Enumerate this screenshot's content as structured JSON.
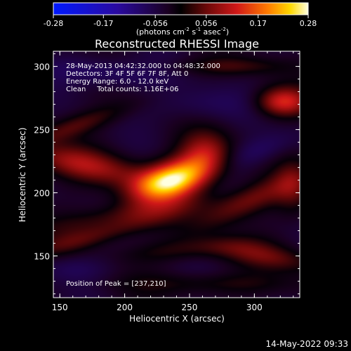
{
  "chart_data": {
    "type": "heatmap",
    "title": "Reconstructed RHESSI Image",
    "xlabel": "Heliocentric X (arcsec)",
    "ylabel": "Heliocentric Y (arcsec)",
    "xlim": [
      145,
      335
    ],
    "ylim": [
      117,
      312
    ],
    "xticks": [
      150,
      200,
      250,
      300
    ],
    "yticks": [
      150,
      200,
      250,
      300
    ],
    "colorbar": {
      "min": -0.28,
      "max": 0.28,
      "ticks": [
        "-0.28",
        "-0.17",
        "-0.056",
        "0.056",
        "0.17",
        "0.28"
      ],
      "units_parts": {
        "a": "(photons cm",
        "b": "-2",
        "c": " s",
        "d": "-1",
        "e": " asec",
        "f": "-2",
        "g": ")"
      }
    },
    "info_lines": [
      "28-May-2013 04:42:32.000 to 04:48:32.000",
      "Detectors: 3F 4F 5F 6F 7F 8F, Att 0",
      "Energy Range: 6.0 - 12.0 keV",
      "Clean     Total counts: 1.16E+06"
    ],
    "peak_label": "Position of Peak = [237,210]",
    "peak": {
      "x": 237,
      "y": 210,
      "value": 0.28
    },
    "field_components": [
      {
        "x": 237,
        "y": 210,
        "sx": 22,
        "sy": 10,
        "rot": 18,
        "amp": 0.3
      },
      {
        "x": 170,
        "y": 222,
        "sx": 34,
        "sy": 9,
        "rot": -12,
        "amp": 0.12
      },
      {
        "x": 262,
        "y": 232,
        "sx": 14,
        "sy": 12,
        "rot": 0,
        "amp": 0.11
      },
      {
        "x": 293,
        "y": 192,
        "sx": 30,
        "sy": 8,
        "rot": 25,
        "amp": 0.09
      },
      {
        "x": 205,
        "y": 183,
        "sx": 45,
        "sy": 7,
        "rot": 10,
        "amp": 0.07
      },
      {
        "x": 162,
        "y": 253,
        "sx": 30,
        "sy": 6,
        "rot": 20,
        "amp": 0.07
      },
      {
        "x": 175,
        "y": 165,
        "sx": 40,
        "sy": 6,
        "rot": 15,
        "amp": 0.07
      },
      {
        "x": 310,
        "y": 150,
        "sx": 30,
        "sy": 7,
        "rot": -10,
        "amp": 0.08
      },
      {
        "x": 248,
        "y": 155,
        "sx": 35,
        "sy": 6,
        "rot": 5,
        "amp": 0.05
      },
      {
        "x": 322,
        "y": 272,
        "sx": 14,
        "sy": 8,
        "rot": 0,
        "amp": 0.16
      },
      {
        "x": 283,
        "y": 300,
        "sx": 30,
        "sy": 5,
        "rot": 0,
        "amp": 0.06
      },
      {
        "x": 330,
        "y": 205,
        "sx": 10,
        "sy": 15,
        "rot": 0,
        "amp": 0.07
      },
      {
        "x": 265,
        "y": 128,
        "sx": 45,
        "sy": 6,
        "rot": 0,
        "amp": 0.05
      },
      {
        "x": 185,
        "y": 295,
        "sx": 30,
        "sy": 8,
        "rot": -5,
        "amp": -0.06
      },
      {
        "x": 300,
        "y": 232,
        "sx": 25,
        "sy": 8,
        "rot": 20,
        "amp": -0.05
      },
      {
        "x": 260,
        "y": 270,
        "sx": 25,
        "sy": 10,
        "rot": 0,
        "amp": -0.04
      },
      {
        "x": 160,
        "y": 140,
        "sx": 20,
        "sy": 8,
        "rot": 0,
        "amp": -0.04
      }
    ]
  },
  "footer": {
    "timestamp": "14-May-2022 09:33"
  }
}
